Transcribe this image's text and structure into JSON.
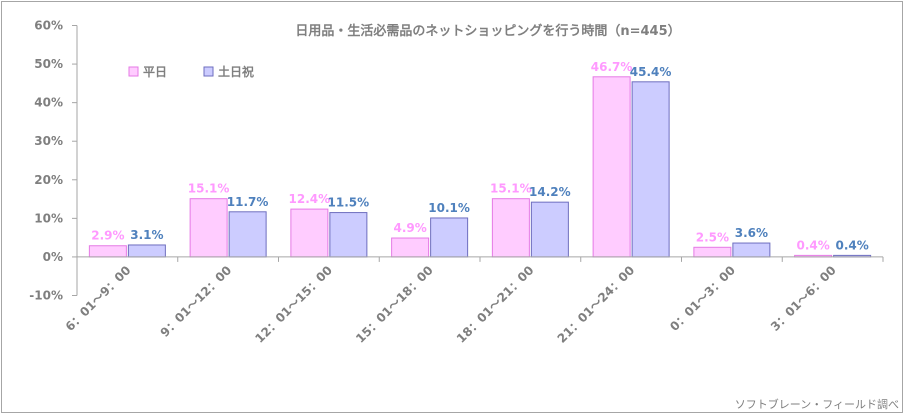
{
  "colors": {
    "weekday_fill": "#ffccff",
    "weekday_stroke": "#e57ae5",
    "weekday_label": "#ff99ff",
    "holiday_fill": "#ccccff",
    "holiday_stroke": "#6e6ebf",
    "holiday_label": "#4f81bd",
    "axis": "#a6a6a6",
    "text": "#7f7f7f"
  },
  "chart_data": {
    "type": "bar",
    "title": "日用品・生活必需品のネットショッピングを行う時間（n=445）",
    "categories": [
      "6：01～9：00",
      "9：01～12：00",
      "12：01～15：00",
      "15：01～18：00",
      "18：01～21：00",
      "21：01～24：00",
      "0：01～3：00",
      "3：01～6：00"
    ],
    "series": [
      {
        "name": "平日",
        "values": [
          2.9,
          15.1,
          12.4,
          4.9,
          15.1,
          46.7,
          2.5,
          0.4
        ],
        "labels": [
          "2.9%",
          "15.1%",
          "12.4%",
          "4.9%",
          "15.1%",
          "46.7%",
          "2.5%",
          "0.4%"
        ]
      },
      {
        "name": "土日祝",
        "values": [
          3.1,
          11.7,
          11.5,
          10.1,
          14.2,
          45.4,
          3.6,
          0.4
        ],
        "labels": [
          "3.1%",
          "11.7%",
          "11.5%",
          "10.1%",
          "14.2%",
          "45.4%",
          "3.6%",
          "0.4%"
        ]
      }
    ],
    "yticks": [
      "60%",
      "50%",
      "40%",
      "30%",
      "20%",
      "10%",
      "0%",
      "-10%"
    ],
    "ylim": [
      -10,
      60
    ],
    "legend_position": "top-left",
    "grid": false
  },
  "source": "ソフトブレーン・フィールド調べ"
}
